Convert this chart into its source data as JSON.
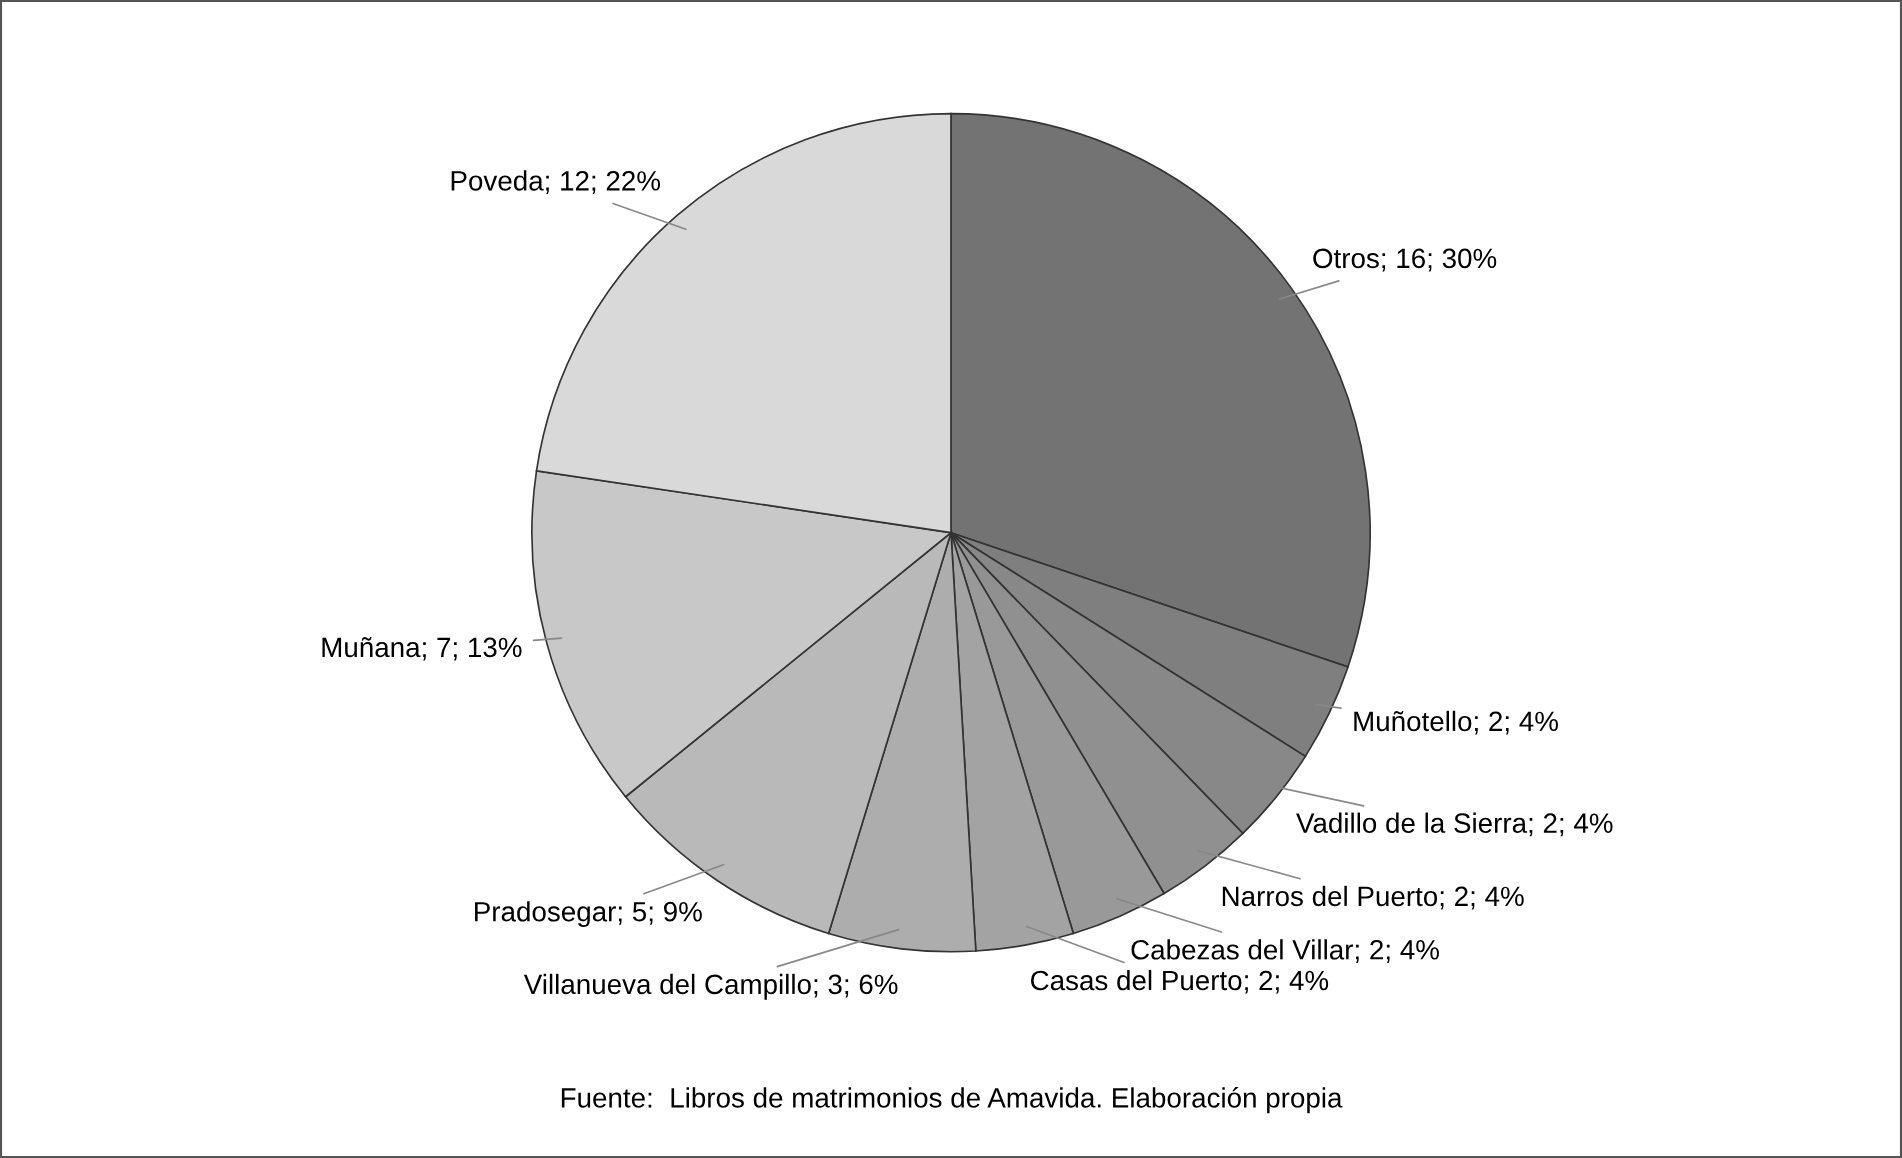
{
  "chart_data": {
    "type": "pie",
    "categories": [
      "Otros",
      "Muñotello",
      "Vadillo de la Sierra",
      "Narros del Puerto",
      "Cabezas del Villar",
      "Casas del Puerto",
      "Villanueva del Campillo",
      "Pradosegar",
      "Muñana",
      "Poveda"
    ],
    "values": [
      16,
      2,
      2,
      2,
      2,
      2,
      3,
      5,
      7,
      12
    ],
    "value_labels": [
      "16; 30%",
      "2; 4%",
      "2; 4%",
      "2; 4%",
      "2; 4%",
      "2; 4%",
      "3; 6%",
      "5; 9%",
      "7; 13%",
      "12; 22%"
    ],
    "colors": [
      "#737373",
      "#7f7f7f",
      "#888888",
      "#909090",
      "#999999",
      "#a3a3a3",
      "#adadad",
      "#b9b9b9",
      "#c8c8c8",
      "#d9d9d9"
    ],
    "annotations": [
      "Fuente:  Libros de matrimonios de Amavida. Elaboración propia"
    ],
    "legend": false
  }
}
